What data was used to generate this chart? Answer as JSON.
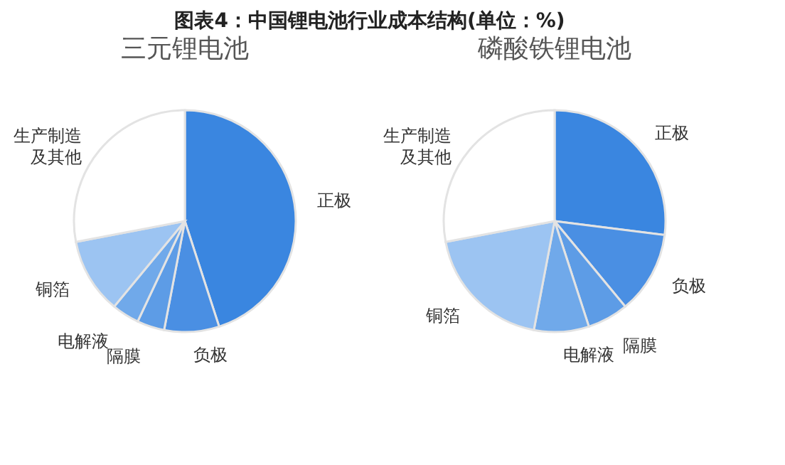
{
  "chart_data": [
    {
      "type": "pie",
      "title": "图表4：中国锂电池行业成本结构(单位：%)",
      "subtitle": "三元锂电池",
      "categories": [
        "正极",
        "负极",
        "隔膜",
        "电解液",
        "铜箔",
        "生产制造及其他"
      ],
      "values": [
        45,
        8,
        4,
        4,
        11,
        28
      ],
      "colors": [
        "#3a86e0",
        "#4a8fe3",
        "#5d9ce6",
        "#70a9ea",
        "#9cc4f2",
        "#ffffff"
      ]
    },
    {
      "type": "pie",
      "subtitle": "磷酸铁锂电池",
      "categories": [
        "正极",
        "负极",
        "隔膜",
        "电解液",
        "铜箔",
        "生产制造及其他"
      ],
      "values": [
        27,
        12,
        6,
        8,
        19,
        28
      ],
      "colors": [
        "#3a86e0",
        "#4a8fe3",
        "#5d9ce6",
        "#70a9ea",
        "#9cc4f2",
        "#ffffff"
      ]
    }
  ]
}
